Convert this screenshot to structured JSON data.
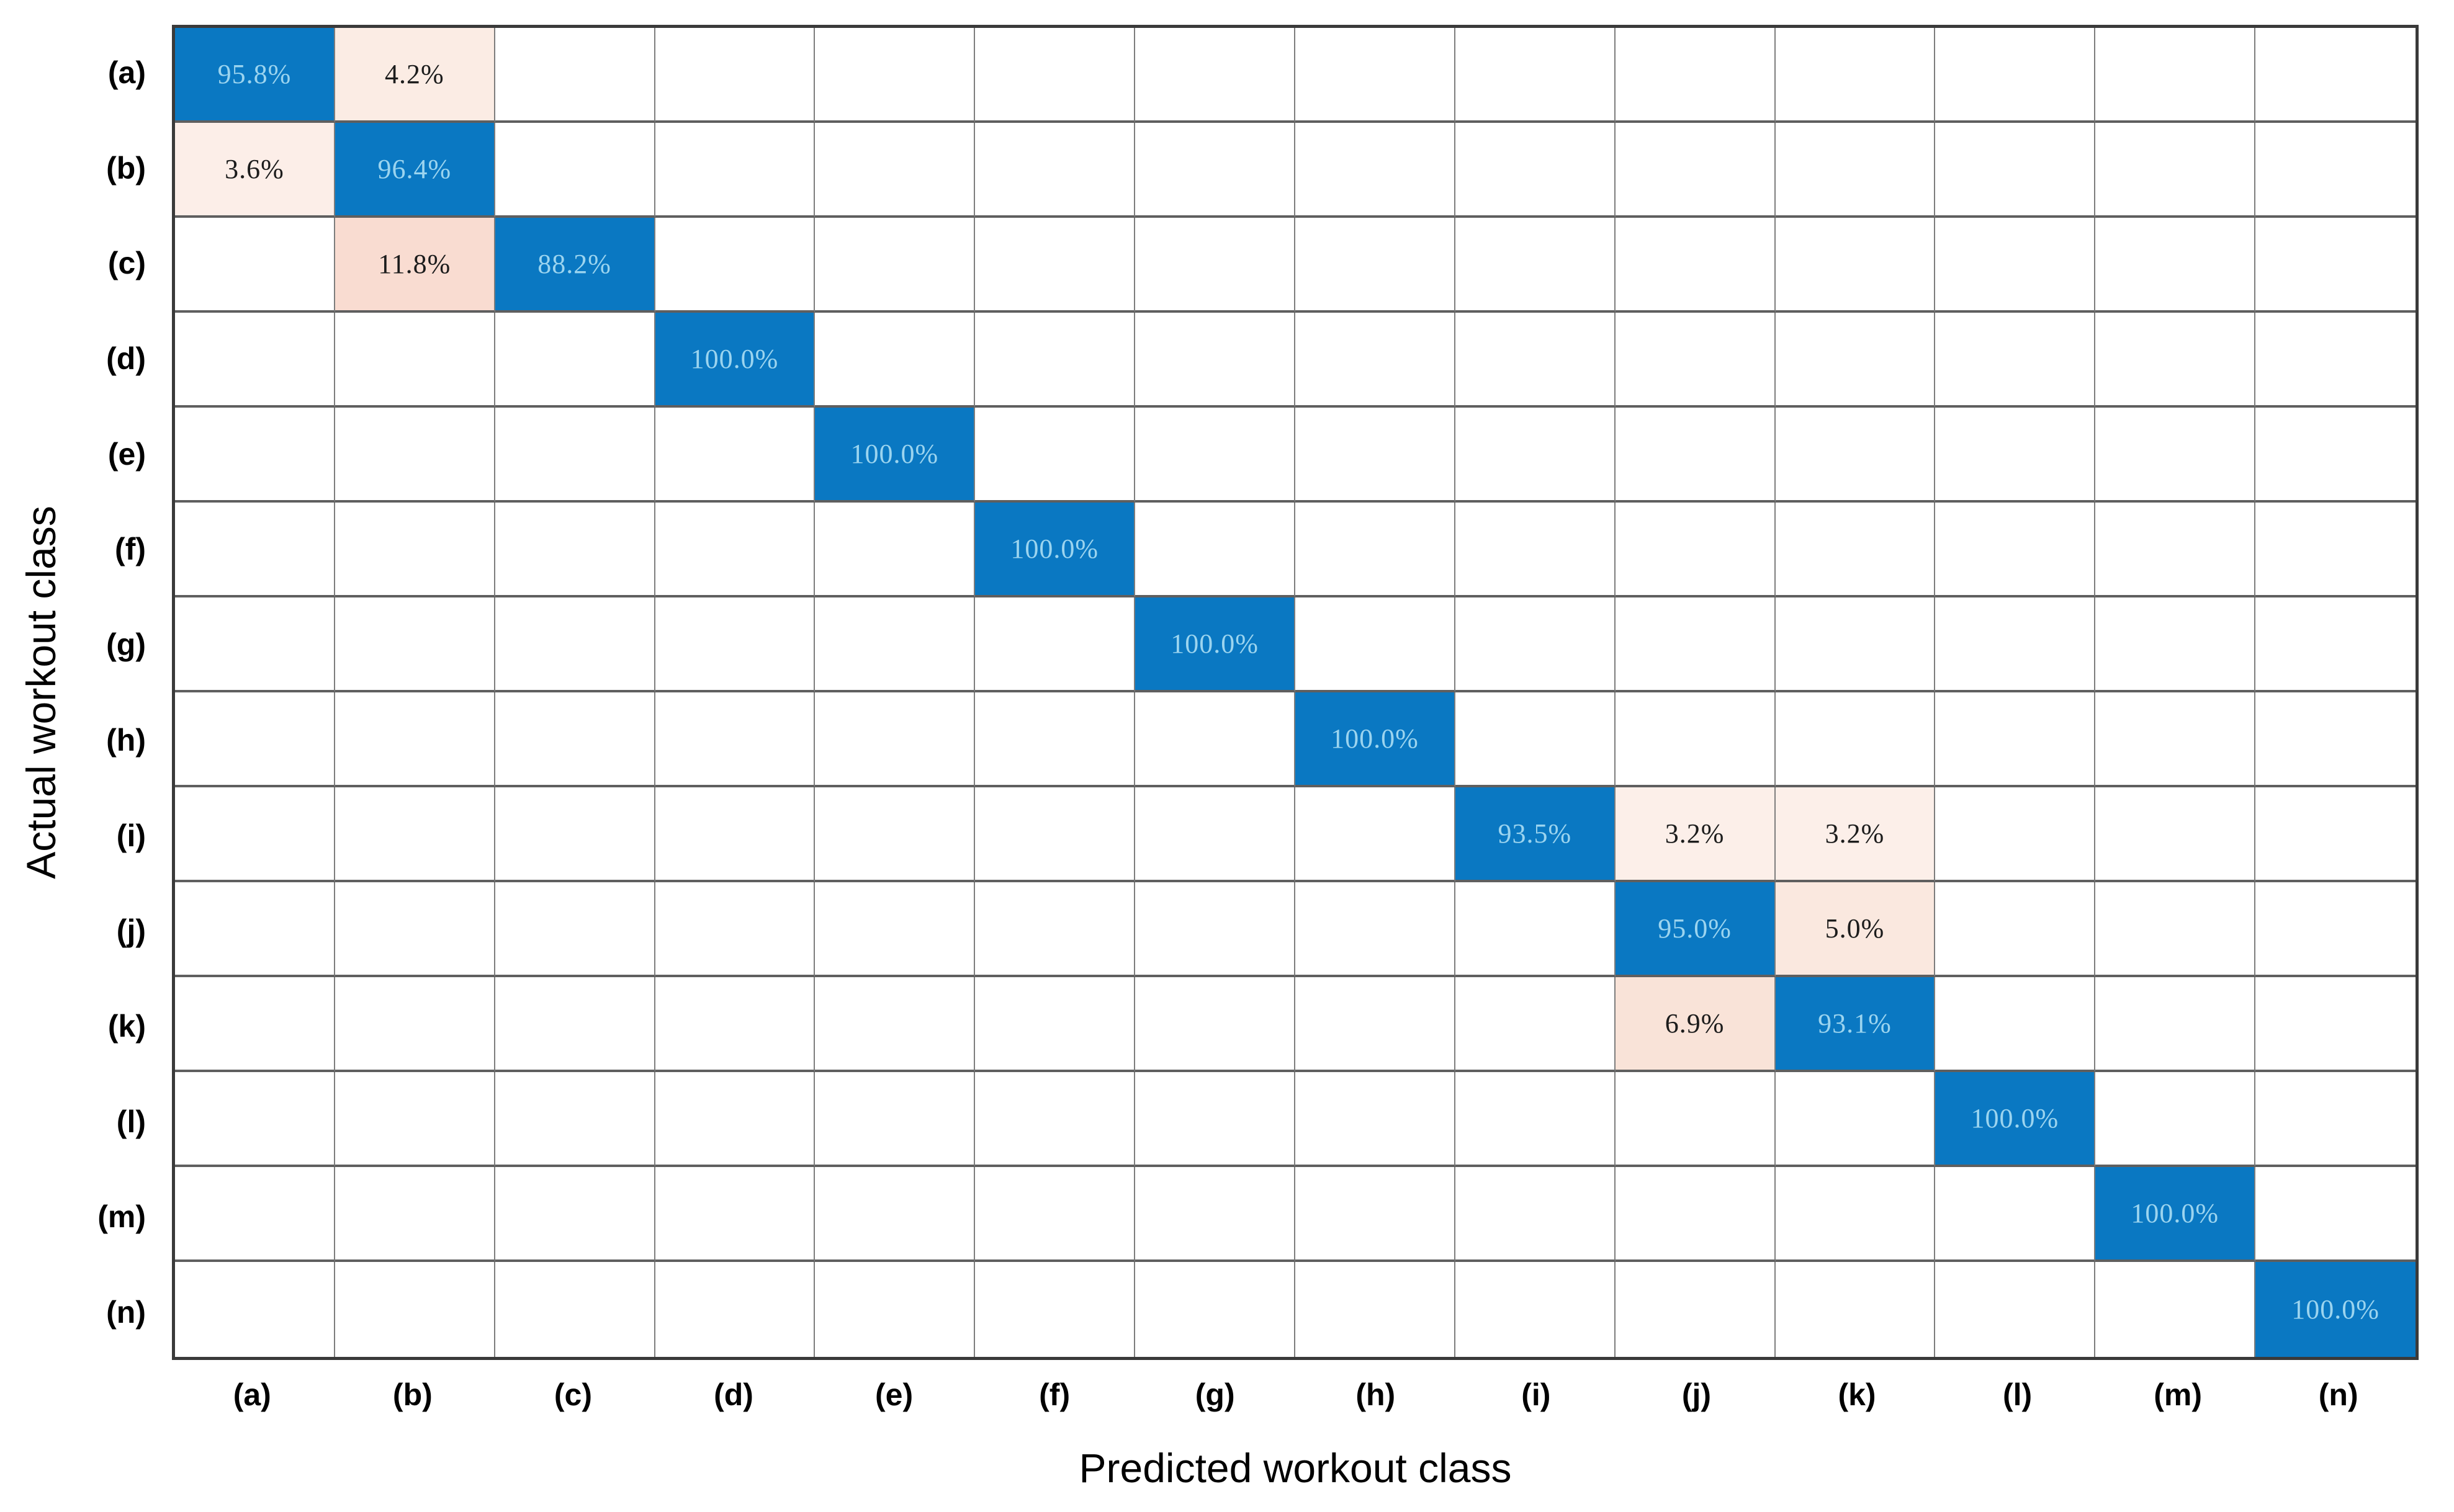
{
  "figure": {
    "background": "#ffffff"
  },
  "chart_data": {
    "type": "heatmap",
    "title": "",
    "xlabel": "Predicted workout class",
    "ylabel": "Actual workout class",
    "x_categories": [
      "(a)",
      "(b)",
      "(c)",
      "(d)",
      "(e)",
      "(f)",
      "(g)",
      "(h)",
      "(i)",
      "(j)",
      "(k)",
      "(l)",
      "(m)",
      "(n)"
    ],
    "y_categories": [
      "(a)",
      "(b)",
      "(c)",
      "(d)",
      "(e)",
      "(f)",
      "(g)",
      "(h)",
      "(i)",
      "(j)",
      "(k)",
      "(l)",
      "(m)",
      "(n)"
    ],
    "unit": "%",
    "legend_position": "none",
    "grid": true,
    "cells": [
      {
        "row": "(a)",
        "col": "(a)",
        "value": 95.8,
        "label": "95.8%",
        "kind": "diagonal"
      },
      {
        "row": "(a)",
        "col": "(b)",
        "value": 4.2,
        "label": "4.2%",
        "kind": "off",
        "bg": "#fbece4"
      },
      {
        "row": "(b)",
        "col": "(a)",
        "value": 3.6,
        "label": "3.6%",
        "kind": "off",
        "bg": "#fceee8"
      },
      {
        "row": "(b)",
        "col": "(b)",
        "value": 96.4,
        "label": "96.4%",
        "kind": "diagonal"
      },
      {
        "row": "(c)",
        "col": "(b)",
        "value": 11.8,
        "label": "11.8%",
        "kind": "off",
        "bg": "#f9dcd1"
      },
      {
        "row": "(c)",
        "col": "(c)",
        "value": 88.2,
        "label": "88.2%",
        "kind": "diagonal"
      },
      {
        "row": "(d)",
        "col": "(d)",
        "value": 100.0,
        "label": "100.0%",
        "kind": "diagonal"
      },
      {
        "row": "(e)",
        "col": "(e)",
        "value": 100.0,
        "label": "100.0%",
        "kind": "diagonal"
      },
      {
        "row": "(f)",
        "col": "(f)",
        "value": 100.0,
        "label": "100.0%",
        "kind": "diagonal"
      },
      {
        "row": "(g)",
        "col": "(g)",
        "value": 100.0,
        "label": "100.0%",
        "kind": "diagonal"
      },
      {
        "row": "(h)",
        "col": "(h)",
        "value": 100.0,
        "label": "100.0%",
        "kind": "diagonal"
      },
      {
        "row": "(i)",
        "col": "(i)",
        "value": 93.5,
        "label": "93.5%",
        "kind": "diagonal"
      },
      {
        "row": "(i)",
        "col": "(j)",
        "value": 3.2,
        "label": "3.2%",
        "kind": "off",
        "bg": "#fcefe9"
      },
      {
        "row": "(i)",
        "col": "(k)",
        "value": 3.2,
        "label": "3.2%",
        "kind": "off",
        "bg": "#fcefe9"
      },
      {
        "row": "(j)",
        "col": "(j)",
        "value": 95.0,
        "label": "95.0%",
        "kind": "diagonal"
      },
      {
        "row": "(j)",
        "col": "(k)",
        "value": 5.0,
        "label": "5.0%",
        "kind": "off",
        "bg": "#fae8df"
      },
      {
        "row": "(k)",
        "col": "(j)",
        "value": 6.9,
        "label": "6.9%",
        "kind": "off",
        "bg": "#f9e3d8"
      },
      {
        "row": "(k)",
        "col": "(k)",
        "value": 93.1,
        "label": "93.1%",
        "kind": "diagonal"
      },
      {
        "row": "(l)",
        "col": "(l)",
        "value": 100.0,
        "label": "100.0%",
        "kind": "diagonal"
      },
      {
        "row": "(m)",
        "col": "(m)",
        "value": 100.0,
        "label": "100.0%",
        "kind": "diagonal"
      },
      {
        "row": "(n)",
        "col": "(n)",
        "value": 100.0,
        "label": "100.0%",
        "kind": "diagonal"
      }
    ],
    "colors": {
      "diagonal_bg": "#0a78c2",
      "diagonal_text": "#9bd4ef",
      "off_text": "#1c1c1c",
      "empty_bg": "#ffffff",
      "grid_line_vertical": "#7d7d7d",
      "grid_line_horizontal": "#5f5f5f",
      "outer_border": "#3a3a3a"
    }
  }
}
